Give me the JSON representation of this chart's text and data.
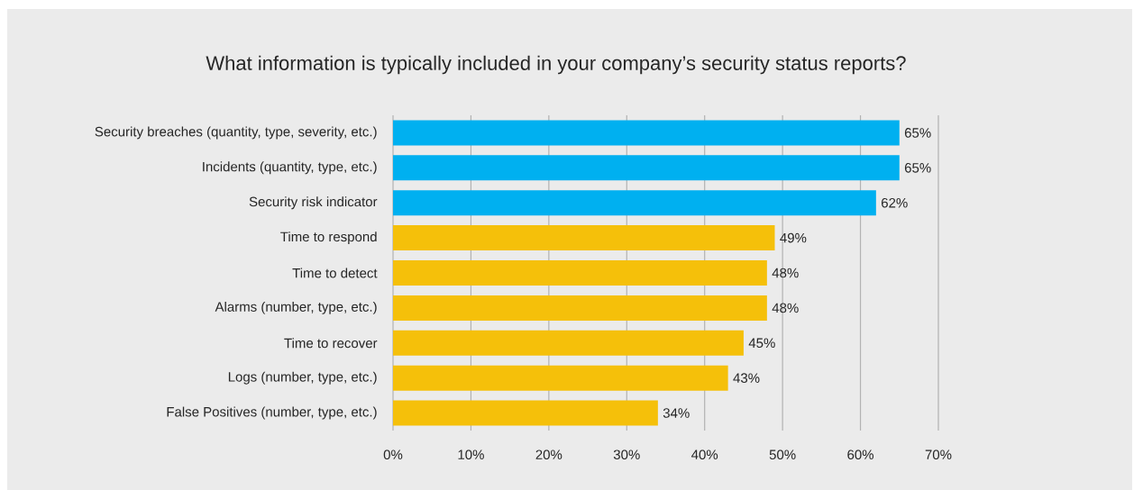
{
  "chart_data": {
    "type": "bar",
    "orientation": "horizontal",
    "title": "What information is typically included in your company’s security status reports?",
    "categories": [
      "Security breaches (quantity, type, severity, etc.)",
      "Incidents (quantity, type, etc.)",
      "Security risk indicator",
      "Time to respond",
      "Time to detect",
      "Alarms (number, type, etc.)",
      "Time to recover",
      "Logs (number, type, etc.)",
      "False Positives (number, type, etc.)"
    ],
    "values": [
      65,
      65,
      62,
      49,
      48,
      48,
      45,
      43,
      34
    ],
    "colors": [
      "#00b0f0",
      "#00b0f0",
      "#00b0f0",
      "#f5c00a",
      "#f5c00a",
      "#f5c00a",
      "#f5c00a",
      "#f5c00a",
      "#f5c00a"
    ],
    "value_labels": [
      "65%",
      "65%",
      "62%",
      "49%",
      "48%",
      "48%",
      "45%",
      "43%",
      "34%"
    ],
    "xlim": [
      0,
      70
    ],
    "xticks": [
      {
        "value": 0,
        "label": "0%"
      },
      {
        "value": 10,
        "label": "10%"
      },
      {
        "value": 20,
        "label": "20%"
      },
      {
        "value": 30,
        "label": "30%"
      },
      {
        "value": 40,
        "label": "40%"
      },
      {
        "value": 50,
        "label": "50%"
      },
      {
        "value": 60,
        "label": "60%"
      },
      {
        "value": 70,
        "label": "70%"
      }
    ],
    "grid": "x"
  }
}
